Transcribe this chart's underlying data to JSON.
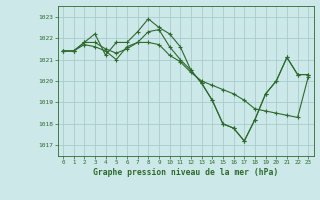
{
  "title": "Graphe pression niveau de la mer (hPa)",
  "background_color": "#cce8e8",
  "grid_color": "#aacccc",
  "line_color": "#2d6a2d",
  "xlim": [
    -0.5,
    23.5
  ],
  "ylim": [
    1016.5,
    1023.5
  ],
  "yticks": [
    1017,
    1018,
    1019,
    1020,
    1021,
    1022,
    1023
  ],
  "xticks": [
    0,
    1,
    2,
    3,
    4,
    5,
    6,
    7,
    8,
    9,
    10,
    11,
    12,
    13,
    14,
    15,
    16,
    17,
    18,
    19,
    20,
    21,
    22,
    23
  ],
  "series": [
    [
      1021.4,
      1021.4,
      1021.8,
      1022.2,
      1021.2,
      1021.8,
      1021.8,
      1022.3,
      1022.9,
      1022.5,
      1022.2,
      1021.6,
      1020.5,
      1019.9,
      1019.1,
      1018.0,
      1017.8,
      1017.2,
      1018.2,
      1019.4,
      1020.0,
      1021.1,
      1020.3,
      1020.3
    ],
    [
      1021.4,
      1021.4,
      1021.8,
      1021.8,
      1021.5,
      1021.3,
      1021.5,
      1021.8,
      1022.3,
      1022.4,
      1021.6,
      1021.0,
      1020.5,
      1019.9,
      1019.1,
      1018.0,
      1017.8,
      1017.2,
      1018.2,
      1019.4,
      1020.0,
      1021.1,
      1020.3,
      1020.3
    ],
    [
      1021.4,
      1021.4,
      1021.7,
      1021.6,
      1021.4,
      1021.0,
      1021.6,
      1021.8,
      1021.8,
      1021.7,
      1021.2,
      1020.9,
      1020.4,
      1020.0,
      1019.8,
      1019.6,
      1019.4,
      1019.1,
      1018.7,
      1018.6,
      1018.5,
      1018.4,
      1018.3,
      1020.2
    ]
  ]
}
